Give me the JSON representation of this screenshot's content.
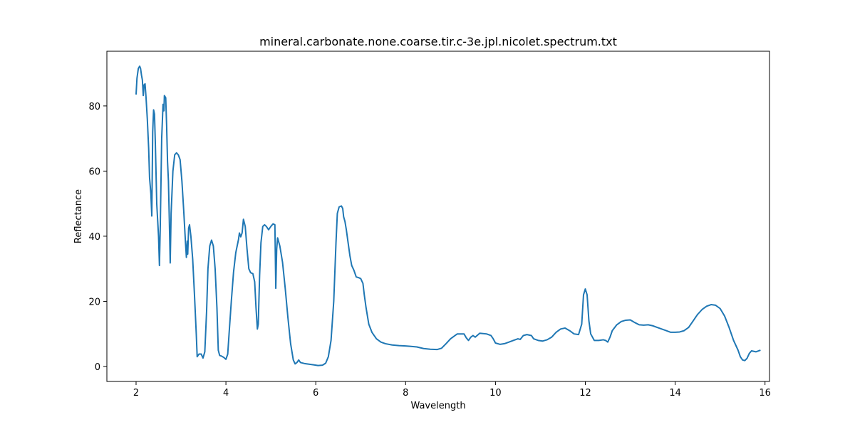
{
  "chart_data": {
    "type": "line",
    "title": "mineral.carbonate.none.coarse.tir.c-3e.jpl.nicolet.spectrum.txt",
    "xlabel": "Wavelength",
    "ylabel": "Reflectance",
    "xlim": [
      1.35,
      16.1
    ],
    "ylim": [
      -4.6,
      96.8
    ],
    "xticks": [
      2,
      4,
      6,
      8,
      10,
      12,
      14,
      16
    ],
    "yticks": [
      0,
      20,
      40,
      60,
      80
    ],
    "grid": false,
    "color": "#1f77b4",
    "series": [
      {
        "points": [
          [
            2.0,
            83.5
          ],
          [
            2.02,
            88.5
          ],
          [
            2.05,
            91.5
          ],
          [
            2.08,
            92.2
          ],
          [
            2.1,
            91.5
          ],
          [
            2.12,
            89.5
          ],
          [
            2.14,
            88.0
          ],
          [
            2.16,
            83.2
          ],
          [
            2.18,
            86.5
          ],
          [
            2.2,
            86.8
          ],
          [
            2.22,
            83.0
          ],
          [
            2.25,
            76.0
          ],
          [
            2.28,
            67.0
          ],
          [
            2.3,
            58.0
          ],
          [
            2.33,
            53.0
          ],
          [
            2.35,
            46.2
          ],
          [
            2.37,
            72.0
          ],
          [
            2.39,
            78.8
          ],
          [
            2.41,
            77.5
          ],
          [
            2.43,
            68.0
          ],
          [
            2.46,
            50.0
          ],
          [
            2.48,
            45.0
          ],
          [
            2.5,
            40.0
          ],
          [
            2.52,
            31.0
          ],
          [
            2.54,
            44.0
          ],
          [
            2.57,
            70.0
          ],
          [
            2.6,
            80.5
          ],
          [
            2.62,
            78.5
          ],
          [
            2.63,
            83.2
          ],
          [
            2.66,
            82.5
          ],
          [
            2.68,
            74.0
          ],
          [
            2.7,
            63.0
          ],
          [
            2.72,
            57.0
          ],
          [
            2.74,
            45.0
          ],
          [
            2.76,
            31.8
          ],
          [
            2.78,
            47.0
          ],
          [
            2.82,
            60.0
          ],
          [
            2.86,
            65.0
          ],
          [
            2.9,
            65.6
          ],
          [
            2.94,
            65.0
          ],
          [
            2.98,
            63.5
          ],
          [
            3.02,
            57.0
          ],
          [
            3.06,
            48.0
          ],
          [
            3.1,
            38.0
          ],
          [
            3.12,
            33.5
          ],
          [
            3.14,
            38.5
          ],
          [
            3.15,
            34.5
          ],
          [
            3.17,
            42.5
          ],
          [
            3.19,
            43.5
          ],
          [
            3.22,
            40.0
          ],
          [
            3.26,
            33.0
          ],
          [
            3.3,
            22.0
          ],
          [
            3.34,
            10.0
          ],
          [
            3.36,
            3.0
          ],
          [
            3.4,
            3.8
          ],
          [
            3.45,
            3.8
          ],
          [
            3.49,
            2.6
          ],
          [
            3.53,
            4.5
          ],
          [
            3.57,
            17.0
          ],
          [
            3.6,
            30.0
          ],
          [
            3.64,
            37.0
          ],
          [
            3.68,
            38.8
          ],
          [
            3.72,
            37.0
          ],
          [
            3.76,
            30.0
          ],
          [
            3.8,
            18.0
          ],
          [
            3.83,
            5.0
          ],
          [
            3.86,
            3.4
          ],
          [
            3.9,
            3.2
          ],
          [
            3.95,
            2.8
          ],
          [
            4.0,
            2.2
          ],
          [
            4.04,
            3.8
          ],
          [
            4.07,
            10.0
          ],
          [
            4.12,
            20.0
          ],
          [
            4.17,
            29.0
          ],
          [
            4.22,
            35.0
          ],
          [
            4.28,
            39.0
          ],
          [
            4.3,
            41.0
          ],
          [
            4.33,
            39.8
          ],
          [
            4.36,
            41.0
          ],
          [
            4.39,
            45.2
          ],
          [
            4.43,
            43.0
          ],
          [
            4.47,
            36.0
          ],
          [
            4.51,
            30.0
          ],
          [
            4.55,
            28.8
          ],
          [
            4.6,
            28.5
          ],
          [
            4.64,
            26.0
          ],
          [
            4.67,
            18.0
          ],
          [
            4.7,
            11.5
          ],
          [
            4.72,
            13.0
          ],
          [
            4.75,
            28.0
          ],
          [
            4.78,
            38.0
          ],
          [
            4.82,
            43.0
          ],
          [
            4.86,
            43.5
          ],
          [
            4.9,
            43.0
          ],
          [
            4.95,
            42.0
          ],
          [
            5.0,
            43.0
          ],
          [
            5.05,
            43.8
          ],
          [
            5.09,
            43.5
          ],
          [
            5.11,
            24.0
          ],
          [
            5.13,
            36.0
          ],
          [
            5.15,
            39.5
          ],
          [
            5.2,
            37.0
          ],
          [
            5.26,
            32.0
          ],
          [
            5.32,
            24.0
          ],
          [
            5.38,
            15.0
          ],
          [
            5.44,
            7.0
          ],
          [
            5.5,
            2.0
          ],
          [
            5.54,
            0.8
          ],
          [
            5.58,
            1.2
          ],
          [
            5.62,
            2.0
          ],
          [
            5.66,
            1.2
          ],
          [
            5.75,
            0.9
          ],
          [
            5.85,
            0.7
          ],
          [
            5.95,
            0.5
          ],
          [
            6.05,
            0.3
          ],
          [
            6.15,
            0.4
          ],
          [
            6.22,
            1.0
          ],
          [
            6.28,
            3.0
          ],
          [
            6.34,
            8.0
          ],
          [
            6.4,
            20.0
          ],
          [
            6.45,
            38.0
          ],
          [
            6.48,
            47.0
          ],
          [
            6.52,
            49.0
          ],
          [
            6.57,
            49.3
          ],
          [
            6.6,
            48.5
          ],
          [
            6.62,
            46.0
          ],
          [
            6.65,
            44.5
          ],
          [
            6.68,
            42.0
          ],
          [
            6.72,
            38.0
          ],
          [
            6.76,
            34.0
          ],
          [
            6.8,
            31.0
          ],
          [
            6.85,
            29.5
          ],
          [
            6.9,
            27.5
          ],
          [
            6.95,
            27.3
          ],
          [
            7.0,
            27.0
          ],
          [
            7.05,
            25.5
          ],
          [
            7.08,
            22.0
          ],
          [
            7.12,
            18.0
          ],
          [
            7.18,
            13.0
          ],
          [
            7.25,
            10.5
          ],
          [
            7.35,
            8.5
          ],
          [
            7.45,
            7.5
          ],
          [
            7.55,
            7.0
          ],
          [
            7.7,
            6.6
          ],
          [
            7.85,
            6.4
          ],
          [
            8.0,
            6.3
          ],
          [
            8.1,
            6.2
          ],
          [
            8.25,
            6.0
          ],
          [
            8.4,
            5.5
          ],
          [
            8.55,
            5.3
          ],
          [
            8.7,
            5.2
          ],
          [
            8.8,
            5.6
          ],
          [
            8.9,
            7.0
          ],
          [
            9.0,
            8.5
          ],
          [
            9.1,
            9.5
          ],
          [
            9.15,
            10.0
          ],
          [
            9.3,
            10.0
          ],
          [
            9.35,
            8.8
          ],
          [
            9.4,
            8.0
          ],
          [
            9.45,
            9.0
          ],
          [
            9.5,
            9.5
          ],
          [
            9.55,
            9.0
          ],
          [
            9.65,
            10.2
          ],
          [
            9.8,
            10.0
          ],
          [
            9.9,
            9.5
          ],
          [
            9.95,
            8.5
          ],
          [
            10.0,
            7.2
          ],
          [
            10.1,
            6.8
          ],
          [
            10.2,
            7.0
          ],
          [
            10.3,
            7.5
          ],
          [
            10.4,
            8.0
          ],
          [
            10.5,
            8.5
          ],
          [
            10.55,
            8.3
          ],
          [
            10.62,
            9.5
          ],
          [
            10.7,
            9.8
          ],
          [
            10.8,
            9.5
          ],
          [
            10.85,
            8.5
          ],
          [
            10.95,
            8.0
          ],
          [
            11.05,
            7.8
          ],
          [
            11.15,
            8.2
          ],
          [
            11.25,
            9.0
          ],
          [
            11.35,
            10.5
          ],
          [
            11.45,
            11.5
          ],
          [
            11.55,
            11.8
          ],
          [
            11.65,
            11.0
          ],
          [
            11.75,
            10.0
          ],
          [
            11.85,
            9.8
          ],
          [
            11.92,
            13.0
          ],
          [
            11.96,
            22.0
          ],
          [
            12.0,
            23.8
          ],
          [
            12.04,
            22.0
          ],
          [
            12.08,
            14.0
          ],
          [
            12.12,
            10.0
          ],
          [
            12.2,
            8.0
          ],
          [
            12.3,
            8.0
          ],
          [
            12.4,
            8.2
          ],
          [
            12.45,
            8.0
          ],
          [
            12.5,
            7.5
          ],
          [
            12.55,
            9.0
          ],
          [
            12.6,
            11.0
          ],
          [
            12.7,
            12.8
          ],
          [
            12.8,
            13.8
          ],
          [
            12.9,
            14.2
          ],
          [
            13.0,
            14.3
          ],
          [
            13.1,
            13.5
          ],
          [
            13.2,
            12.8
          ],
          [
            13.3,
            12.7
          ],
          [
            13.4,
            12.8
          ],
          [
            13.5,
            12.5
          ],
          [
            13.6,
            12.0
          ],
          [
            13.7,
            11.5
          ],
          [
            13.8,
            11.0
          ],
          [
            13.9,
            10.5
          ],
          [
            14.0,
            10.5
          ],
          [
            14.1,
            10.6
          ],
          [
            14.2,
            11.0
          ],
          [
            14.3,
            12.0
          ],
          [
            14.4,
            14.0
          ],
          [
            14.5,
            16.0
          ],
          [
            14.6,
            17.5
          ],
          [
            14.7,
            18.5
          ],
          [
            14.8,
            19.0
          ],
          [
            14.9,
            18.8
          ],
          [
            15.0,
            17.8
          ],
          [
            15.1,
            15.5
          ],
          [
            15.2,
            12.0
          ],
          [
            15.3,
            8.0
          ],
          [
            15.4,
            5.0
          ],
          [
            15.45,
            3.0
          ],
          [
            15.5,
            2.0
          ],
          [
            15.55,
            1.8
          ],
          [
            15.6,
            2.5
          ],
          [
            15.65,
            4.0
          ],
          [
            15.7,
            4.8
          ],
          [
            15.8,
            4.5
          ],
          [
            15.9,
            5.0
          ]
        ]
      }
    ]
  }
}
